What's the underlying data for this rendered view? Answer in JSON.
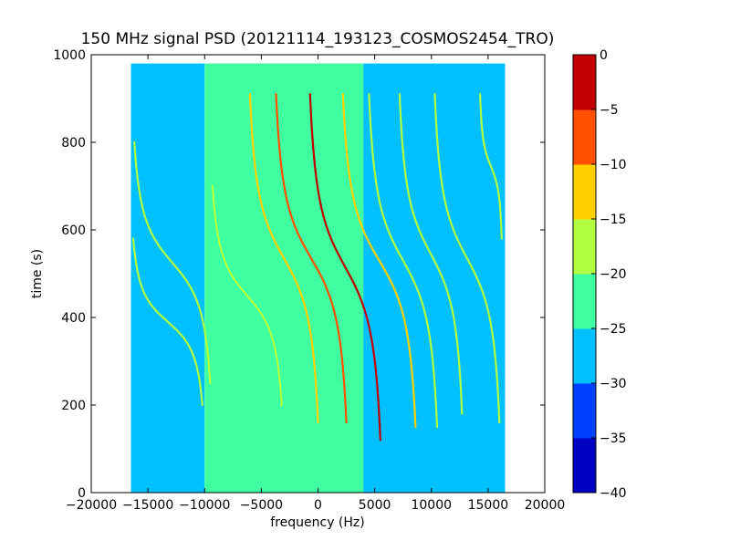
{
  "chart_data": {
    "type": "heatmap",
    "title": "150 MHz signal PSD (20121114_193123_COSMOS2454_TRO)",
    "xlabel": "frequency (Hz)",
    "ylabel": "time (s)",
    "xlim": [
      -20000,
      20000
    ],
    "ylim": [
      0,
      1000
    ],
    "x_ticks": [
      -20000,
      -15000,
      -10000,
      -5000,
      0,
      5000,
      10000,
      15000,
      20000
    ],
    "x_tick_labels": [
      "−20000",
      "−15000",
      "−10000",
      "−5000",
      "0",
      "5000",
      "10000",
      "15000",
      "20000"
    ],
    "y_ticks": [
      0,
      200,
      400,
      600,
      800,
      1000
    ],
    "y_tick_labels": [
      "0",
      "200",
      "400",
      "600",
      "800",
      "1000"
    ],
    "data_extent": {
      "x": [
        -16500,
        16500
      ],
      "y": [
        0,
        980
      ]
    },
    "background_regions": [
      {
        "x_from": -16500,
        "x_to": -10000,
        "level": -27.5
      },
      {
        "x_from": -10000,
        "x_to": 4000,
        "level": -22.5
      },
      {
        "x_from": 4000,
        "x_to": 16500,
        "level": -27.5
      }
    ],
    "traces": [
      {
        "x_start": -16200,
        "x_end": -9500,
        "y_top": 800,
        "y_bottom": 250,
        "level": -17.5
      },
      {
        "x_start": -16300,
        "x_end": -10200,
        "y_top": 580,
        "y_bottom": 200,
        "level": -17.5
      },
      {
        "x_start": -9300,
        "x_end": -3200,
        "y_top": 700,
        "y_bottom": 200,
        "level": -17.5
      },
      {
        "x_start": -6000,
        "x_end": 0,
        "y_top": 910,
        "y_bottom": 160,
        "level": -12.5
      },
      {
        "x_start": -3700,
        "x_end": 2500,
        "y_top": 910,
        "y_bottom": 160,
        "level": -7.5
      },
      {
        "x_start": -700,
        "x_end": 5500,
        "y_top": 910,
        "y_bottom": 120,
        "level": -2.5
      },
      {
        "x_start": 2200,
        "x_end": 8600,
        "y_top": 910,
        "y_bottom": 150,
        "level": -12.5
      },
      {
        "x_start": 4500,
        "x_end": 10500,
        "y_top": 910,
        "y_bottom": 150,
        "level": -17.5
      },
      {
        "x_start": 7200,
        "x_end": 12700,
        "y_top": 910,
        "y_bottom": 180,
        "level": -17.5
      },
      {
        "x_start": 10300,
        "x_end": 16000,
        "y_top": 910,
        "y_bottom": 160,
        "level": -17.5
      },
      {
        "x_start": 14300,
        "x_end": 16200,
        "y_top": 910,
        "y_bottom": 580,
        "level": -17.5
      }
    ],
    "colorbar": {
      "min": -40,
      "max": 0,
      "levels": [
        -40,
        -35,
        -30,
        -25,
        -20,
        -15,
        -10,
        -5,
        0
      ],
      "tick_labels": [
        "−40",
        "−35",
        "−30",
        "−25",
        "−20",
        "−15",
        "−10",
        "−5",
        "0"
      ],
      "colors": [
        "#0000c0",
        "#0040ff",
        "#00c0ff",
        "#40ffa0",
        "#b0ff40",
        "#ffd000",
        "#ff5000",
        "#c00000"
      ]
    },
    "grid": false
  }
}
